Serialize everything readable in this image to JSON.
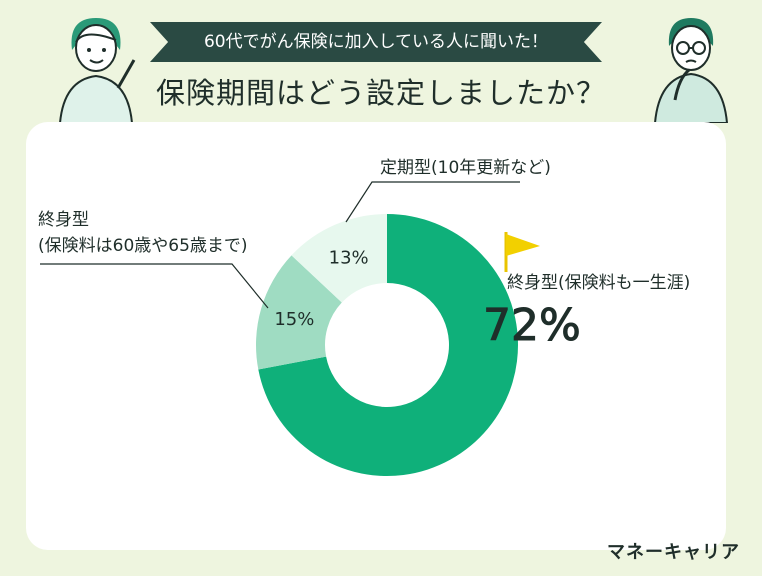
{
  "header": {
    "banner": "60代でがん保険に加入している人に聞いた！",
    "title": "保険期間はどう設定しましたか？"
  },
  "labels": {
    "lifetime": "終身型(保険料も一生涯)",
    "lifetime_pct": "72%",
    "term_line1": "定期型(10年更新など)",
    "limited_line1": "終身型",
    "limited_line2": "(保険料は60歳や65歳まで)"
  },
  "brand": "マネーキャリア",
  "colors": {
    "lifetime": "#0fb07a",
    "limited": "#9fdcc2",
    "term": "#e7f8ee",
    "background": "#eef5df",
    "banner": "#2a4a43"
  },
  "chart_data": {
    "type": "pie",
    "donut": true,
    "categories": [
      "終身型(保険料も一生涯)",
      "終身型(保険料は60歳や65歳まで)",
      "定期型(10年更新など)"
    ],
    "values": [
      72,
      15,
      13
    ],
    "value_labels": [
      "72%",
      "15%",
      "13%"
    ]
  }
}
